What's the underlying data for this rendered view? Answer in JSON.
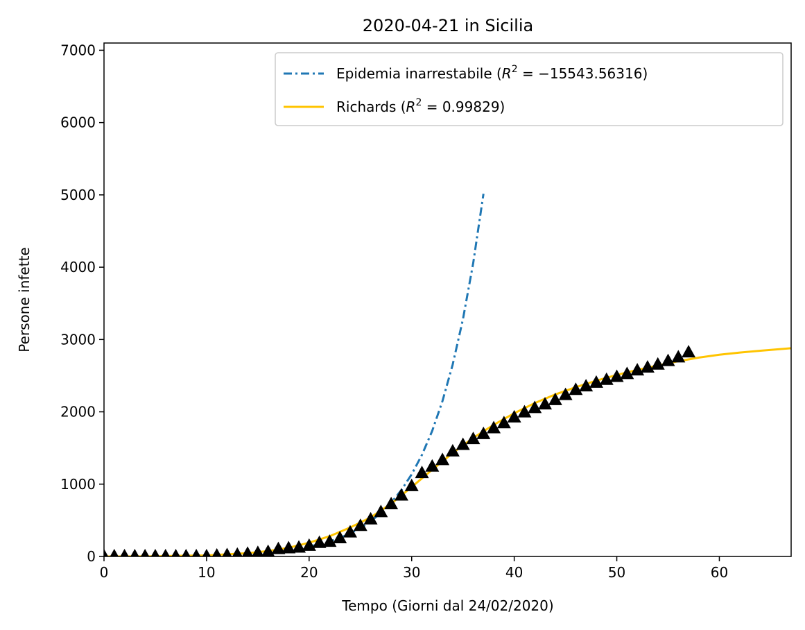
{
  "chart_data": {
    "type": "line",
    "title": "2020-04-21 in Sicilia",
    "xlabel": "Tempo (Giorni dal 24/02/2020)",
    "ylabel": "Persone infette",
    "xlim": [
      0,
      67
    ],
    "ylim": [
      0,
      7100
    ],
    "xticks": [
      "0",
      "10",
      "20",
      "30",
      "40",
      "50",
      "60"
    ],
    "yticks": [
      "0",
      "1000",
      "2000",
      "3000",
      "4000",
      "5000",
      "6000",
      "7000"
    ],
    "legend_position": "top-right",
    "grid": false,
    "series": [
      {
        "name": "Epidemia inarrestabile",
        "r2": "−15543.56316",
        "style": "dashdot",
        "color": "#1f77b4",
        "x": [
          20,
          21,
          22,
          23,
          24,
          25,
          26,
          27,
          28,
          29,
          30,
          31,
          32,
          33,
          34,
          35,
          36,
          37
        ],
        "y": [
          136,
          169,
          208,
          257,
          318,
          393,
          486,
          601,
          743,
          919,
          1136,
          1404,
          1736,
          2147,
          2654,
          3281,
          4057,
          5015
        ]
      },
      {
        "name": "Richards",
        "r2": "0.99829",
        "style": "solid",
        "color": "#ffc400",
        "x": [
          0,
          5,
          10,
          14,
          16,
          18,
          20,
          22,
          24,
          26,
          28,
          30,
          32,
          34,
          36,
          38,
          40,
          42,
          44,
          46,
          48,
          50,
          52,
          54,
          56,
          58,
          60,
          62,
          64,
          67
        ],
        "y": [
          0,
          3,
          15,
          45,
          75,
          120,
          190,
          280,
          400,
          540,
          730,
          960,
          1200,
          1430,
          1640,
          1820,
          1980,
          2120,
          2240,
          2340,
          2430,
          2510,
          2580,
          2640,
          2700,
          2750,
          2790,
          2820,
          2845,
          2880
        ]
      },
      {
        "name": "",
        "style": "markers",
        "marker": "triangle",
        "color": "#000000",
        "x": [
          0,
          1,
          2,
          3,
          4,
          5,
          6,
          7,
          8,
          9,
          10,
          11,
          12,
          13,
          14,
          15,
          16,
          17,
          18,
          19,
          20,
          21,
          22,
          23,
          24,
          25,
          26,
          27,
          28,
          29,
          30,
          31,
          32,
          33,
          34,
          35,
          36,
          37,
          38,
          39,
          40,
          41,
          42,
          43,
          44,
          45,
          46,
          47,
          48,
          49,
          50,
          51,
          52,
          53,
          54,
          55,
          56,
          57
        ],
        "y": [
          0,
          0,
          0,
          0,
          0,
          0,
          0,
          0,
          0,
          0,
          0,
          10,
          15,
          22,
          35,
          45,
          60,
          100,
          110,
          120,
          145,
          185,
          200,
          250,
          330,
          420,
          510,
          610,
          720,
          840,
          970,
          1150,
          1240,
          1330,
          1450,
          1540,
          1620,
          1690,
          1770,
          1840,
          1920,
          1990,
          2050,
          2100,
          2160,
          2230,
          2300,
          2350,
          2400,
          2440,
          2480,
          2520,
          2570,
          2610,
          2650,
          2700,
          2750,
          2820
        ]
      }
    ]
  }
}
